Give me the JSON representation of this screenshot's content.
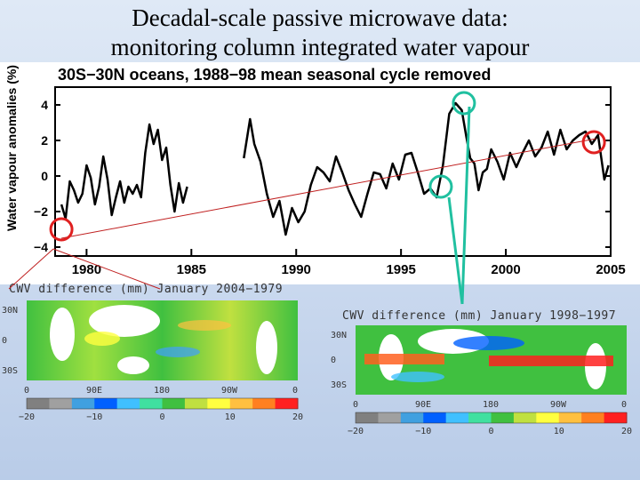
{
  "slide": {
    "title_line1": "Decadal-scale passive microwave data:",
    "title_line2": "monitoring column integrated water vapour"
  },
  "chart_data": {
    "type": "line",
    "title": "30S−30N  oceans,  1988−98  mean  seasonal  cycle  removed",
    "xlabel": "",
    "ylabel": "Water vapour anomalies (%)",
    "xlim": [
      1978.5,
      2005
    ],
    "ylim": [
      -4.5,
      5
    ],
    "xticks": [
      "1980",
      "1985",
      "1990",
      "1995",
      "2000",
      "2005"
    ],
    "yticks": [
      "4",
      "2",
      "0",
      "−2",
      "−4"
    ],
    "series": [
      {
        "name": "anomaly_1979_1984",
        "x": [
          1978.8,
          1979.0,
          1979.2,
          1979.4,
          1979.6,
          1979.8,
          1980.0,
          1980.2,
          1980.4,
          1980.6,
          1980.8,
          1981.0,
          1981.2,
          1981.4,
          1981.6,
          1981.8,
          1982.0,
          1982.2,
          1982.4,
          1982.6,
          1982.8,
          1983.0,
          1983.2,
          1983.4,
          1983.6,
          1983.8,
          1984.0,
          1984.2,
          1984.4,
          1984.6,
          1984.8
        ],
        "y": [
          -1.6,
          -2.4,
          -0.3,
          -0.8,
          -1.5,
          -1.0,
          0.6,
          -0.1,
          -1.6,
          -0.6,
          1.1,
          -0.2,
          -2.2,
          -1.2,
          -0.3,
          -1.5,
          -0.6,
          -1.0,
          -0.5,
          -1.2,
          1.3,
          2.9,
          1.8,
          2.6,
          0.9,
          1.6,
          -0.5,
          -2.0,
          -0.4,
          -1.5,
          -0.6
        ]
      },
      {
        "name": "anomaly_1987_2004",
        "x": [
          1987.5,
          1987.8,
          1988.0,
          1988.3,
          1988.6,
          1988.9,
          1989.2,
          1989.5,
          1989.8,
          1990.1,
          1990.4,
          1990.7,
          1991.0,
          1991.3,
          1991.6,
          1991.9,
          1992.2,
          1992.5,
          1992.8,
          1993.1,
          1993.4,
          1993.7,
          1994.0,
          1994.3,
          1994.6,
          1994.9,
          1995.2,
          1995.5,
          1995.8,
          1996.1,
          1996.4,
          1996.7,
          1997.0,
          1997.3,
          1997.6,
          1997.9,
          1998.1,
          1998.3,
          1998.5,
          1998.7,
          1998.9,
          1999.1,
          1999.3,
          1999.6,
          1999.9,
          2000.2,
          2000.5,
          2000.8,
          2001.1,
          2001.4,
          2001.7,
          2002.0,
          2002.3,
          2002.6,
          2002.9,
          2003.2,
          2003.5,
          2003.8,
          2004.1,
          2004.4,
          2004.7,
          2004.9
        ],
        "y": [
          1.0,
          3.2,
          1.8,
          0.8,
          -1.0,
          -2.3,
          -1.4,
          -3.3,
          -1.8,
          -2.6,
          -2.0,
          -0.5,
          0.5,
          0.2,
          -0.3,
          1.1,
          0.2,
          -0.8,
          -1.6,
          -2.3,
          -1.0,
          0.2,
          0.1,
          -0.7,
          0.7,
          -0.2,
          1.2,
          1.3,
          0.2,
          -1.0,
          -0.7,
          -1.2,
          0.6,
          3.5,
          4.1,
          3.7,
          2.3,
          1.0,
          0.7,
          -0.8,
          0.2,
          0.4,
          1.5,
          0.8,
          -0.2,
          1.3,
          0.5,
          1.3,
          2.0,
          1.1,
          1.6,
          2.5,
          1.2,
          2.6,
          1.5,
          2.0,
          2.3,
          2.5,
          1.8,
          2.3,
          -0.2,
          0.6
        ]
      },
      {
        "name": "trend_line",
        "x": [
          1978.8,
          2004.3
        ],
        "y": [
          -3.5,
          2.1
        ]
      }
    ],
    "markers": [
      {
        "name": "red-circle-1979",
        "x": 1978.8,
        "y": -3.0,
        "color": "#e02020"
      },
      {
        "name": "green-circle-1998",
        "x": 1998.0,
        "y": 4.1,
        "color": "#20c0a0"
      },
      {
        "name": "green-circle-1997",
        "x": 1996.9,
        "y": -0.6,
        "color": "#20c0a0"
      },
      {
        "name": "red-circle-2004",
        "x": 2004.2,
        "y": 1.9,
        "color": "#e02020"
      }
    ]
  },
  "map_left": {
    "caption": "CWV difference (mm) January 2004−1979",
    "lat_labels": [
      "30N",
      "0",
      "30S"
    ],
    "lon_labels": [
      "0",
      "90E",
      "180",
      "90W",
      "0"
    ],
    "colorbar_labels": [
      "−20",
      "−10",
      "0",
      "10",
      "20"
    ]
  },
  "map_right": {
    "caption": "CWV difference (mm) January 1998−1997",
    "lat_labels": [
      "30N",
      "0",
      "30S"
    ],
    "lon_labels": [
      "0",
      "90E",
      "180",
      "90W",
      "0"
    ],
    "colorbar_labels": [
      "−20",
      "−10",
      "0",
      "10",
      "20"
    ]
  },
  "colors": {
    "line": "#000000",
    "trend": "#c02020",
    "red_marker": "#e02020",
    "green_marker": "#20c0a0",
    "colorbar": [
      "#808080",
      "#a0a0a0",
      "#40a0e0",
      "#0060ff",
      "#40c0ff",
      "#40e0a0",
      "#40c040",
      "#c0e040",
      "#ffff40",
      "#ffc040",
      "#ff8020",
      "#ff2020"
    ]
  }
}
